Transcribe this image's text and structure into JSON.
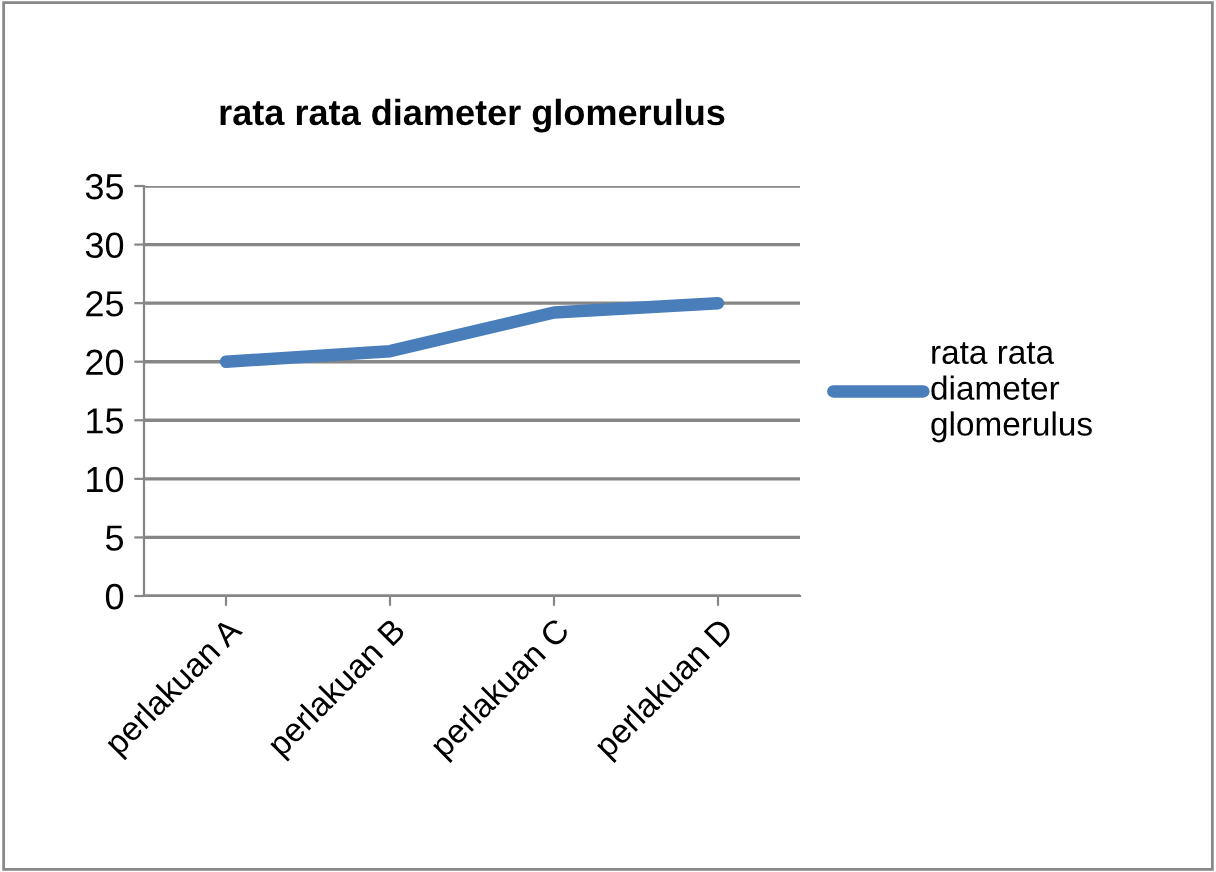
{
  "chart_data": {
    "type": "line",
    "title": "rata rata diameter glomerulus",
    "categories": [
      "perlakuan A",
      "perlakuan B",
      "perlakuan C",
      "perlakuan D"
    ],
    "series": [
      {
        "name": "rata rata diameter glomerulus",
        "color": "#4a7ebb",
        "values": [
          20,
          20.9,
          24.2,
          25
        ]
      }
    ],
    "ylim": [
      0,
      35
    ],
    "yticks": [
      0,
      5,
      10,
      15,
      20,
      25,
      30,
      35
    ],
    "grid": "y",
    "legend": "right",
    "marker": "none",
    "line_style": "solid"
  }
}
